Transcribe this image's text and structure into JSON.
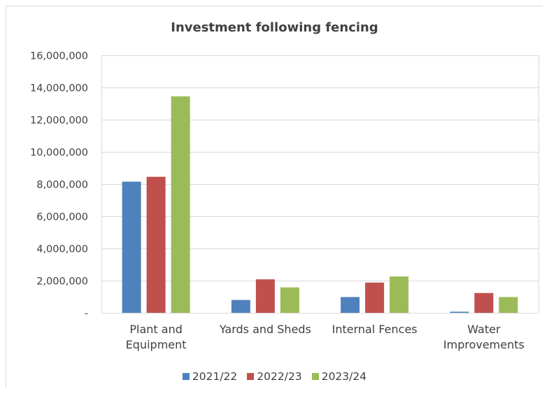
{
  "chart_data": {
    "type": "bar",
    "title": "Investment following fencing",
    "categories": [
      [
        "Plant and",
        "Equipment"
      ],
      [
        "Yards and Sheds"
      ],
      [
        "Internal Fences"
      ],
      [
        "Water",
        "Improvements"
      ]
    ],
    "series": [
      {
        "name": "2021/22",
        "color": "#4f81bd",
        "values": [
          8150000,
          800000,
          980000,
          70000
        ]
      },
      {
        "name": "2022/23",
        "color": "#c0504d",
        "values": [
          8450000,
          2080000,
          1880000,
          1230000
        ]
      },
      {
        "name": "2023/24",
        "color": "#9bbb59",
        "values": [
          13450000,
          1580000,
          2260000,
          980000
        ]
      }
    ],
    "ylim": [
      0,
      16000000
    ],
    "yticks": [
      0,
      2000000,
      4000000,
      6000000,
      8000000,
      10000000,
      12000000,
      14000000,
      16000000
    ],
    "ytick_labels": [
      "-",
      "2,000,000",
      "4,000,000",
      "6,000,000",
      "8,000,000",
      "10,000,000",
      "12,000,000",
      "14,000,000",
      "16,000,000"
    ],
    "grid": true,
    "legend_position": "bottom"
  }
}
